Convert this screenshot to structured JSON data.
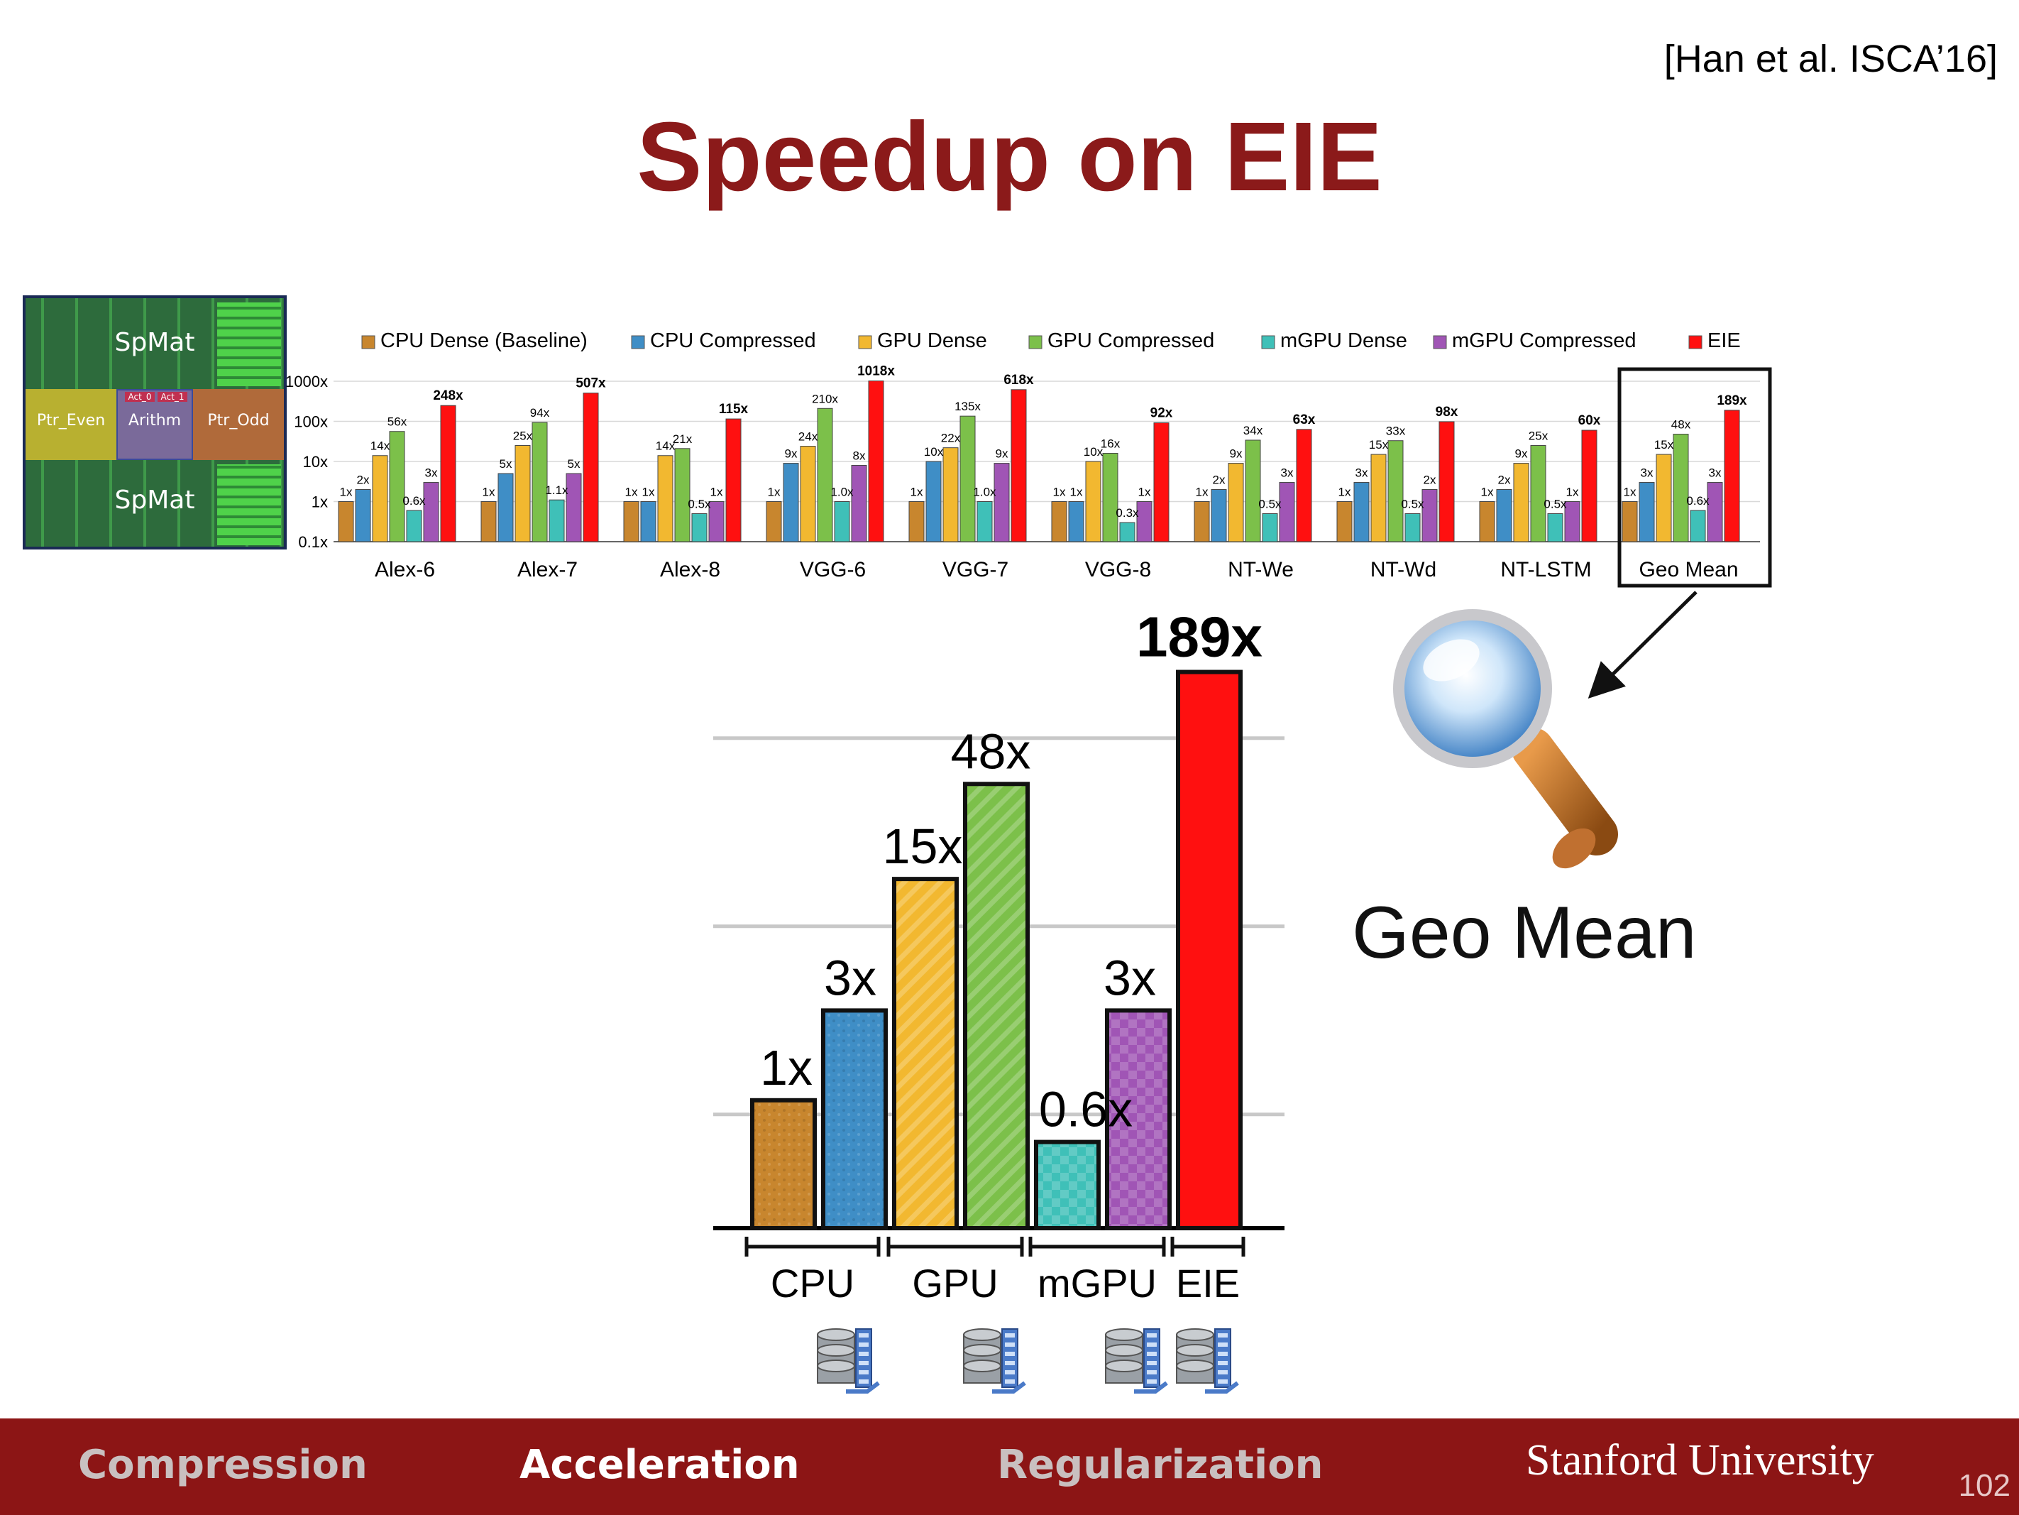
{
  "citation": "[Han et al. ISCA’16]",
  "title": "Speedup on EIE",
  "chip": {
    "top_label": "SpMat",
    "bottom_label": "SpMat",
    "left_label": "Ptr_Even",
    "center_label": "Arithm",
    "right_label": "Ptr_Odd",
    "act0": "Act_0",
    "act1": "Act_1"
  },
  "chart_data": [
    {
      "type": "bar",
      "scale": "log",
      "ylim": [
        0.1,
        1000
      ],
      "yticks": [
        "1000x",
        "100x",
        "10x",
        "1x",
        "0.1x"
      ],
      "legend_position": "top",
      "categories": [
        "Alex-6",
        "Alex-7",
        "Alex-8",
        "VGG-6",
        "VGG-7",
        "VGG-8",
        "NT-We",
        "NT-Wd",
        "NT-LSTM",
        "Geo Mean"
      ],
      "series": [
        {
          "name": "CPU Dense (Baseline)",
          "color": "#c8862e",
          "values": [
            1,
            1,
            1,
            1,
            1,
            1,
            1,
            1,
            1,
            1
          ],
          "labels": [
            "1x",
            "1x",
            "1x",
            "1x",
            "1x",
            "1x",
            "1x",
            "1x",
            "1x",
            "1x"
          ]
        },
        {
          "name": "CPU Compressed",
          "color": "#3f8ec6",
          "values": [
            2,
            5,
            1,
            9,
            10,
            1,
            2,
            3,
            2,
            3
          ],
          "labels": [
            "2x",
            "5x",
            "1x",
            "9x",
            "10x",
            "1x",
            "2x",
            "3x",
            "2x",
            "3x"
          ]
        },
        {
          "name": "GPU Dense",
          "color": "#f2b830",
          "values": [
            14,
            25,
            14,
            24,
            22,
            10,
            9,
            15,
            9,
            15
          ],
          "labels": [
            "14x",
            "25x",
            "14x",
            "24x",
            "22x",
            "10x",
            "9x",
            "15x",
            "9x",
            "15x"
          ]
        },
        {
          "name": "GPU Compressed",
          "color": "#7cc04a",
          "values": [
            56,
            94,
            21,
            210,
            135,
            16,
            34,
            33,
            25,
            48
          ],
          "labels": [
            "56x",
            "94x",
            "21x",
            "210x",
            "135x",
            "16x",
            "34x",
            "33x",
            "25x",
            "48x"
          ]
        },
        {
          "name": "mGPU Dense",
          "color": "#3fc0b8",
          "values": [
            0.6,
            1.1,
            0.5,
            1.0,
            1.0,
            0.3,
            0.5,
            0.5,
            0.5,
            0.6
          ],
          "labels": [
            "0.6x",
            "1.1x",
            "0.5x",
            "1.0x",
            "1.0x",
            "0.3x",
            "0.5x",
            "0.5x",
            "0.5x",
            "0.6x"
          ]
        },
        {
          "name": "mGPU Compressed",
          "color": "#a055b5",
          "values": [
            3,
            5,
            1,
            8,
            9,
            1,
            3,
            2,
            1,
            3
          ],
          "labels": [
            "3x",
            "5x",
            "1x",
            "8x",
            "9x",
            "1x",
            "3x",
            "2x",
            "1x",
            "3x"
          ]
        },
        {
          "name": "EIE",
          "color": "#ff1010",
          "values": [
            248,
            507,
            115,
            1018,
            618,
            92,
            63,
            98,
            60,
            189
          ],
          "labels": [
            "248x",
            "507x",
            "115x",
            "1018x",
            "618x",
            "92x",
            "63x",
            "98x",
            "60x",
            "189x"
          ]
        }
      ]
    },
    {
      "type": "bar",
      "scale": "log",
      "label": "Geo Mean",
      "grid": true,
      "bars": [
        {
          "label": "1x",
          "value": 1,
          "color": "#c8862e"
        },
        {
          "label": "3x",
          "value": 3,
          "color": "#3f8ec6"
        },
        {
          "label": "15x",
          "value": 15,
          "color": "#f2b830"
        },
        {
          "label": "48x",
          "value": 48,
          "color": "#7cc04a"
        },
        {
          "label": "0.6x",
          "value": 0.6,
          "color": "#3fc0b8"
        },
        {
          "label": "3x",
          "value": 3,
          "color": "#a055b5"
        },
        {
          "label": "189x",
          "value": 189,
          "color": "#ff1010"
        }
      ],
      "groups": [
        "CPU",
        "GPU",
        "mGPU",
        "EIE"
      ]
    }
  ],
  "footer": {
    "items": [
      {
        "label": "Compression",
        "color": "#c9c0c0"
      },
      {
        "label": "Acceleration",
        "color": "#ffffff"
      },
      {
        "label": "Regularization",
        "color": "#c9c0c0"
      }
    ],
    "university": "Stanford University",
    "page": "102",
    "bg_color": "#8c1515"
  },
  "icons": [
    "magnifier-icon",
    "database-compressed-icon"
  ]
}
